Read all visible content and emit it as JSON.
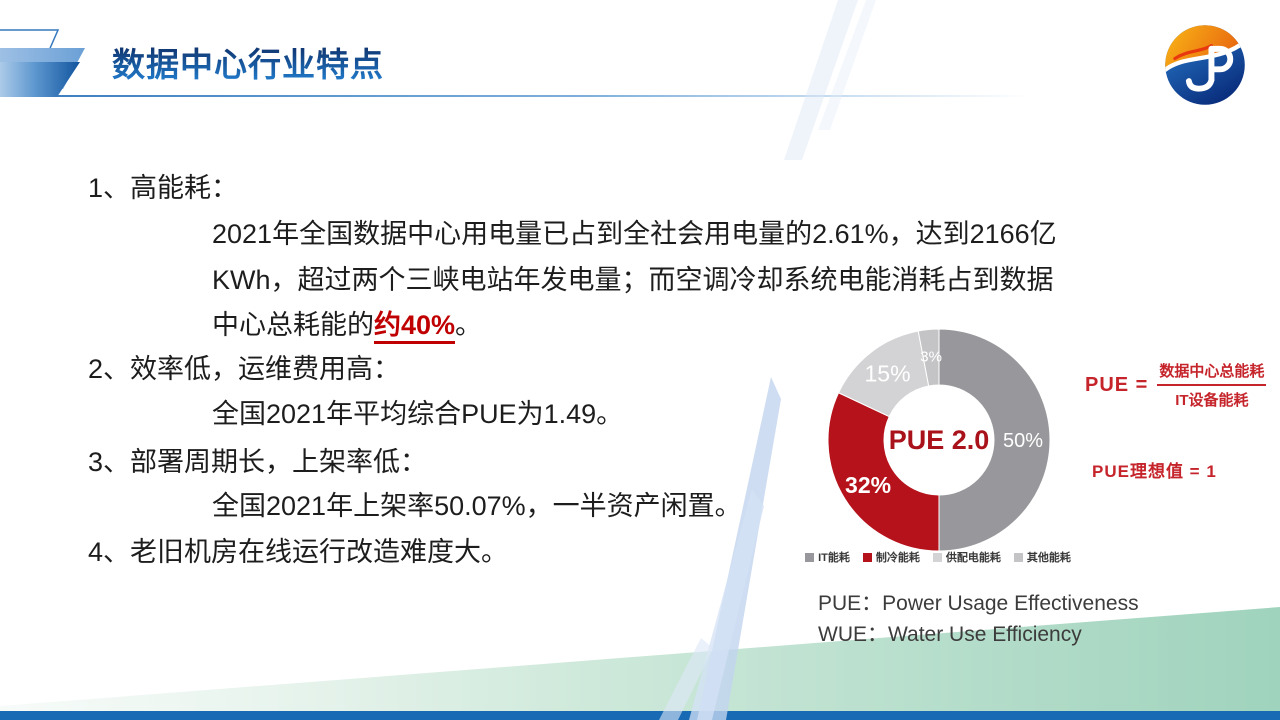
{
  "header": {
    "title": "数据中心行业特点"
  },
  "logo": {
    "name": "jp-company-logo"
  },
  "body": {
    "item1_label": "1、高能耗：",
    "item1_line1": "2021年全国数据中心用电量已占到全社会用电量的2.61%，达到2166亿",
    "item1_line2": "KWh，超过两个三峡电站年发电量；而空调冷却系统电能消耗占到数据",
    "item1_line3_pre": "中心总耗能的",
    "item1_line3_em": "约40%",
    "item1_line3_post": "。",
    "item2_label": "2、效率低，运维费用高：",
    "item2_line1": "全国2021年平均综合PUE为1.49。",
    "item3_label": "3、部署周期长，上架率低：",
    "item3_line1": "全国2021年上架率50.07%，一半资产闲置。",
    "item4_label": "4、老旧机房在线运行改造难度大。"
  },
  "chart_data": {
    "type": "pie",
    "donut": true,
    "center_label": "PUE 2.0",
    "categories": [
      "IT能耗",
      "制冷能耗",
      "供配电能耗",
      "其他能耗"
    ],
    "values": [
      50,
      32,
      15,
      3
    ],
    "slice_labels": [
      "50%",
      "32%",
      "15%",
      "3%"
    ],
    "colors": [
      "#98979b",
      "#b5121b",
      "#d3d3d5",
      "#c4c4c7"
    ],
    "start_angle_deg": 0,
    "direction": "clockwise",
    "legend_position": "bottom",
    "center_label_color": "#a9121a"
  },
  "formula": {
    "lhs": "PUE =",
    "numerator": "数据中心总能耗",
    "denominator": "IT设备能耗",
    "ideal": "PUE理想值 = 1"
  },
  "footer": {
    "line1": "PUE：Power Usage Effectiveness",
    "line2": "WUE：Water Use Efficiency"
  },
  "theme": {
    "title_blue_dark": "#0f316b",
    "title_blue_light": "#2180d2",
    "accent_red": "#c00000",
    "formula_red": "#c5242b",
    "bottom_bar_blue": "#176ab3",
    "green_band": "#9fd3bd",
    "deco_light_blue": "#c2d4ef"
  }
}
